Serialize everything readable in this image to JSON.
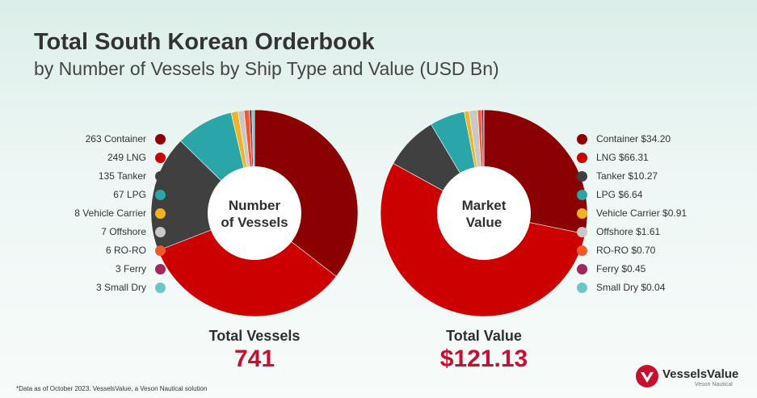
{
  "title": "Total South Korean Orderbook",
  "subtitle": "by Number of Vessels by Ship Type and Value (USD Bn)",
  "colors": {
    "Container": "#8b0000",
    "LNG": "#cc0000",
    "Tanker": "#404040",
    "LPG": "#2aa5a8",
    "Vehicle Carrier": "#f0b323",
    "Offshore": "#c8c8c8",
    "RO-RO": "#ee5a2a",
    "Ferry": "#a3265c",
    "Small Dry": "#6cc6c4"
  },
  "chart_data": [
    {
      "type": "pie",
      "center_label": [
        "Number",
        "of Vessels"
      ],
      "categories": [
        "Container",
        "LNG",
        "Tanker",
        "LPG",
        "Vehicle Carrier",
        "Offshore",
        "RO-RO",
        "Ferry",
        "Small Dry"
      ],
      "values": [
        263,
        249,
        135,
        67,
        8,
        7,
        6,
        3,
        3
      ],
      "legend": [
        "263 Container",
        "249 LNG",
        "135 Tanker",
        "67 LPG",
        "8 Vehicle Carrier",
        "7 Offshore",
        "6 RO-RO",
        "3 Ferry",
        "3 Small Dry"
      ],
      "total_label": "Total Vessels",
      "total_value": "741"
    },
    {
      "type": "pie",
      "center_label": [
        "Market",
        "Value"
      ],
      "categories": [
        "Container",
        "LNG",
        "Tanker",
        "LPG",
        "Vehicle Carrier",
        "Offshore",
        "RO-RO",
        "Ferry",
        "Small Dry"
      ],
      "values": [
        34.2,
        66.31,
        10.27,
        6.64,
        0.91,
        1.61,
        0.7,
        0.45,
        0.04
      ],
      "legend": [
        "Container $34.20",
        "LNG $66.31",
        "Tanker $10.27",
        "LPG $6.64",
        "Vehicle Carrier $0.91",
        "Offshore $1.61",
        "RO-RO $0.70",
        "Ferry $0.45",
        "Small Dry $0.04"
      ],
      "total_label": "Total Value",
      "total_value": "$121.13"
    }
  ],
  "footnote": "*Data as of October 2023. VesselsValue, a Veson Nautical solution",
  "logo": {
    "name": "VesselsValue",
    "sub": "Veson Nautical"
  }
}
